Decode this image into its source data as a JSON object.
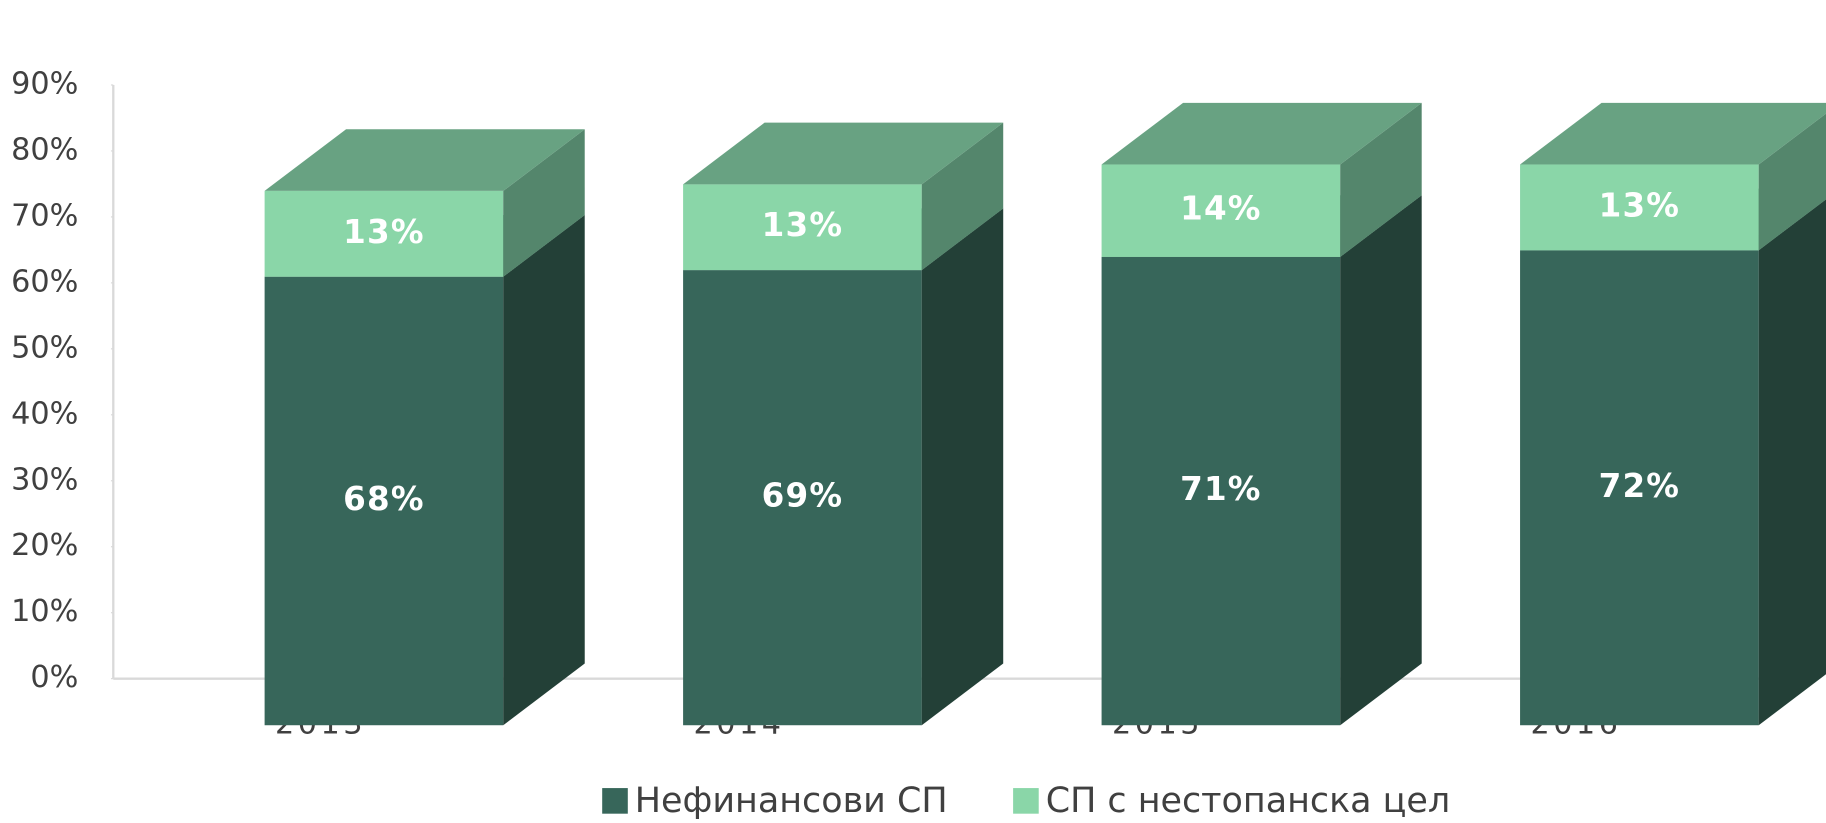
{
  "chart_data": {
    "type": "bar3d_stacked",
    "categories": [
      "2013",
      "2014",
      "2015",
      "2016"
    ],
    "series": [
      {
        "name": "Нефинансови СП",
        "color": "#37665a",
        "values": [
          68,
          69,
          71,
          72
        ],
        "value_labels": [
          "68%",
          "69%",
          "71%",
          "72%"
        ]
      },
      {
        "name": "СП с нестопанска цел",
        "color": "#8ad6a8",
        "values": [
          13,
          13,
          14,
          13
        ],
        "value_labels": [
          "13%",
          "13%",
          "14%",
          "13%"
        ]
      }
    ],
    "ylim": [
      0,
      90
    ],
    "yticks": [
      {
        "value": 0,
        "label": "0%"
      },
      {
        "value": 10,
        "label": "10%"
      },
      {
        "value": 20,
        "label": "20%"
      },
      {
        "value": 30,
        "label": "30%"
      },
      {
        "value": 40,
        "label": "40%"
      },
      {
        "value": 50,
        "label": "50%"
      },
      {
        "value": 60,
        "label": "60%"
      },
      {
        "value": 70,
        "label": "70%"
      },
      {
        "value": 80,
        "label": "80%"
      },
      {
        "value": 90,
        "label": "90%"
      }
    ],
    "legend": "bottom"
  }
}
